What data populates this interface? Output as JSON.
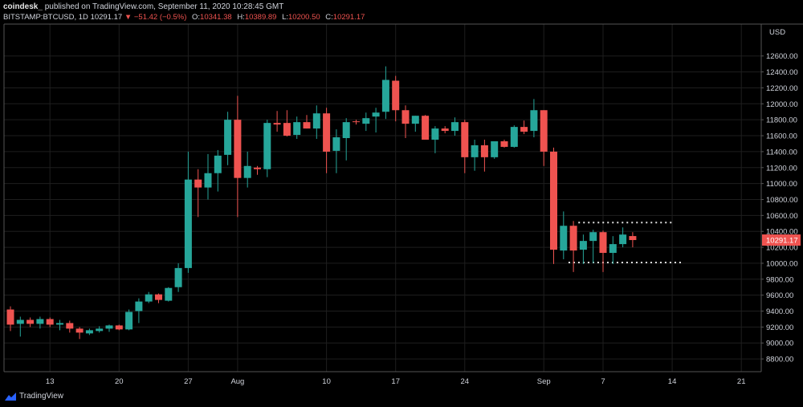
{
  "header": {
    "publisher": "coindesk_",
    "published_text": "published on TradingView.com, September 11, 2020 10:28:45 GMT",
    "symbol": "BITSTAMP:BTCUSD, 1D",
    "last": "10291.17",
    "change": "−51.42 (−0.5%)",
    "open_label": "O:",
    "open": "10341.38",
    "high_label": "H:",
    "high": "10389.89",
    "low_label": "L:",
    "low": "10200.50",
    "close_label": "C:",
    "close": "10291.17"
  },
  "footer": {
    "brand": "TradingView"
  },
  "colors": {
    "up": "#26a69a",
    "down": "#ef5350",
    "background": "#000000",
    "text": "#d1d4dc",
    "grid": "#1e1e1e",
    "price_tag": "#ef5350"
  },
  "chart_data": {
    "type": "candlestick",
    "currency": "USD",
    "ylim": [
      8640,
      13000
    ],
    "y_ticks": [
      8800,
      9000,
      9200,
      9400,
      9600,
      9800,
      10000,
      10200,
      10400,
      10600,
      10800,
      11000,
      11200,
      11400,
      11600,
      11800,
      12000,
      12200,
      12400,
      12600
    ],
    "y_tick_labels": [
      "8800.00",
      "9000.00",
      "9200.00",
      "9400.00",
      "9600.00",
      "9800.00",
      "10000.00",
      "10200.00",
      "10400.00",
      "10600.00",
      "10800.00",
      "11000.00",
      "11200.00",
      "11400.00",
      "11600.00",
      "11800.00",
      "12000.00",
      "12200.00",
      "12400.00",
      "12600.00"
    ],
    "x_ticks": [
      {
        "label": "13",
        "index": 4
      },
      {
        "label": "20",
        "index": 11
      },
      {
        "label": "27",
        "index": 18
      },
      {
        "label": "Aug",
        "index": 23
      },
      {
        "label": "10",
        "index": 32
      },
      {
        "label": "17",
        "index": 39
      },
      {
        "label": "24",
        "index": 46
      },
      {
        "label": "Sep",
        "index": 54
      },
      {
        "label": "7",
        "index": 60
      },
      {
        "label": "14",
        "index": 67
      },
      {
        "label": "21",
        "index": 74
      }
    ],
    "last_price_label": "10291.17",
    "last_price": 10291,
    "range_lines": [
      {
        "value": 10510,
        "from_index": 57.5,
        "to_index": 67
      },
      {
        "value": 10010,
        "from_index": 56.5,
        "to_index": 68
      }
    ],
    "candles": [
      {
        "o": 9420,
        "h": 9460,
        "l": 9150,
        "c": 9230
      },
      {
        "o": 9240,
        "h": 9330,
        "l": 9080,
        "c": 9290
      },
      {
        "o": 9290,
        "h": 9320,
        "l": 9200,
        "c": 9240
      },
      {
        "o": 9240,
        "h": 9330,
        "l": 9180,
        "c": 9300
      },
      {
        "o": 9300,
        "h": 9320,
        "l": 9200,
        "c": 9230
      },
      {
        "o": 9230,
        "h": 9290,
        "l": 9160,
        "c": 9250
      },
      {
        "o": 9250,
        "h": 9280,
        "l": 9130,
        "c": 9180
      },
      {
        "o": 9180,
        "h": 9200,
        "l": 9050,
        "c": 9130
      },
      {
        "o": 9120,
        "h": 9180,
        "l": 9100,
        "c": 9160
      },
      {
        "o": 9150,
        "h": 9210,
        "l": 9130,
        "c": 9180
      },
      {
        "o": 9180,
        "h": 9230,
        "l": 9140,
        "c": 9220
      },
      {
        "o": 9220,
        "h": 9230,
        "l": 9160,
        "c": 9170
      },
      {
        "o": 9170,
        "h": 9420,
        "l": 9160,
        "c": 9390
      },
      {
        "o": 9400,
        "h": 9560,
        "l": 9250,
        "c": 9520
      },
      {
        "o": 9520,
        "h": 9640,
        "l": 9500,
        "c": 9610
      },
      {
        "o": 9610,
        "h": 9620,
        "l": 9500,
        "c": 9540
      },
      {
        "o": 9530,
        "h": 9700,
        "l": 9520,
        "c": 9690
      },
      {
        "o": 9700,
        "h": 10000,
        "l": 9640,
        "c": 9940
      },
      {
        "o": 9940,
        "h": 11400,
        "l": 9880,
        "c": 11050
      },
      {
        "o": 11050,
        "h": 11180,
        "l": 10580,
        "c": 10950
      },
      {
        "o": 10950,
        "h": 11370,
        "l": 10800,
        "c": 11130
      },
      {
        "o": 11130,
        "h": 11420,
        "l": 10900,
        "c": 11350
      },
      {
        "o": 11360,
        "h": 11900,
        "l": 11230,
        "c": 11800
      },
      {
        "o": 11800,
        "h": 12100,
        "l": 10580,
        "c": 11070
      },
      {
        "o": 11070,
        "h": 11400,
        "l": 10950,
        "c": 11220
      },
      {
        "o": 11200,
        "h": 11220,
        "l": 11110,
        "c": 11180
      },
      {
        "o": 11180,
        "h": 11800,
        "l": 11080,
        "c": 11760
      },
      {
        "o": 11760,
        "h": 11910,
        "l": 11650,
        "c": 11740
      },
      {
        "o": 11760,
        "h": 11920,
        "l": 11590,
        "c": 11600
      },
      {
        "o": 11610,
        "h": 11840,
        "l": 11560,
        "c": 11770
      },
      {
        "o": 11770,
        "h": 11860,
        "l": 11690,
        "c": 11690
      },
      {
        "o": 11690,
        "h": 11980,
        "l": 11560,
        "c": 11880
      },
      {
        "o": 11880,
        "h": 11950,
        "l": 11130,
        "c": 11400
      },
      {
        "o": 11410,
        "h": 11680,
        "l": 11130,
        "c": 11580
      },
      {
        "o": 11570,
        "h": 11820,
        "l": 11290,
        "c": 11770
      },
      {
        "o": 11780,
        "h": 11800,
        "l": 11740,
        "c": 11770
      },
      {
        "o": 11750,
        "h": 11890,
        "l": 11660,
        "c": 11820
      },
      {
        "o": 11840,
        "h": 11950,
        "l": 11640,
        "c": 11890
      },
      {
        "o": 11900,
        "h": 12470,
        "l": 11810,
        "c": 12300
      },
      {
        "o": 12290,
        "h": 12350,
        "l": 11780,
        "c": 11920
      },
      {
        "o": 11920,
        "h": 11980,
        "l": 11570,
        "c": 11750
      },
      {
        "o": 11750,
        "h": 11850,
        "l": 11650,
        "c": 11850
      },
      {
        "o": 11850,
        "h": 11860,
        "l": 11550,
        "c": 11550
      },
      {
        "o": 11550,
        "h": 11720,
        "l": 11380,
        "c": 11690
      },
      {
        "o": 11690,
        "h": 11720,
        "l": 11630,
        "c": 11660
      },
      {
        "o": 11660,
        "h": 11830,
        "l": 11600,
        "c": 11770
      },
      {
        "o": 11770,
        "h": 11800,
        "l": 11130,
        "c": 11330
      },
      {
        "o": 11330,
        "h": 11550,
        "l": 11160,
        "c": 11480
      },
      {
        "o": 11480,
        "h": 11550,
        "l": 11150,
        "c": 11330
      },
      {
        "o": 11330,
        "h": 11530,
        "l": 11310,
        "c": 11530
      },
      {
        "o": 11530,
        "h": 11550,
        "l": 11450,
        "c": 11460
      },
      {
        "o": 11460,
        "h": 11730,
        "l": 11450,
        "c": 11710
      },
      {
        "o": 11710,
        "h": 11790,
        "l": 11620,
        "c": 11650
      },
      {
        "o": 11660,
        "h": 12060,
        "l": 11580,
        "c": 11920
      },
      {
        "o": 11920,
        "h": 11920,
        "l": 11220,
        "c": 11400
      },
      {
        "o": 11400,
        "h": 11450,
        "l": 9990,
        "c": 10170
      },
      {
        "o": 10160,
        "h": 10650,
        "l": 10050,
        "c": 10470
      },
      {
        "o": 10470,
        "h": 10530,
        "l": 9890,
        "c": 10160
      },
      {
        "o": 10170,
        "h": 10360,
        "l": 9990,
        "c": 10280
      },
      {
        "o": 10280,
        "h": 10420,
        "l": 10000,
        "c": 10390
      },
      {
        "o": 10390,
        "h": 10410,
        "l": 9890,
        "c": 10130
      },
      {
        "o": 10130,
        "h": 10340,
        "l": 9990,
        "c": 10240
      },
      {
        "o": 10240,
        "h": 10450,
        "l": 10200,
        "c": 10360
      },
      {
        "o": 10341,
        "h": 10390,
        "l": 10200,
        "c": 10291
      }
    ]
  }
}
